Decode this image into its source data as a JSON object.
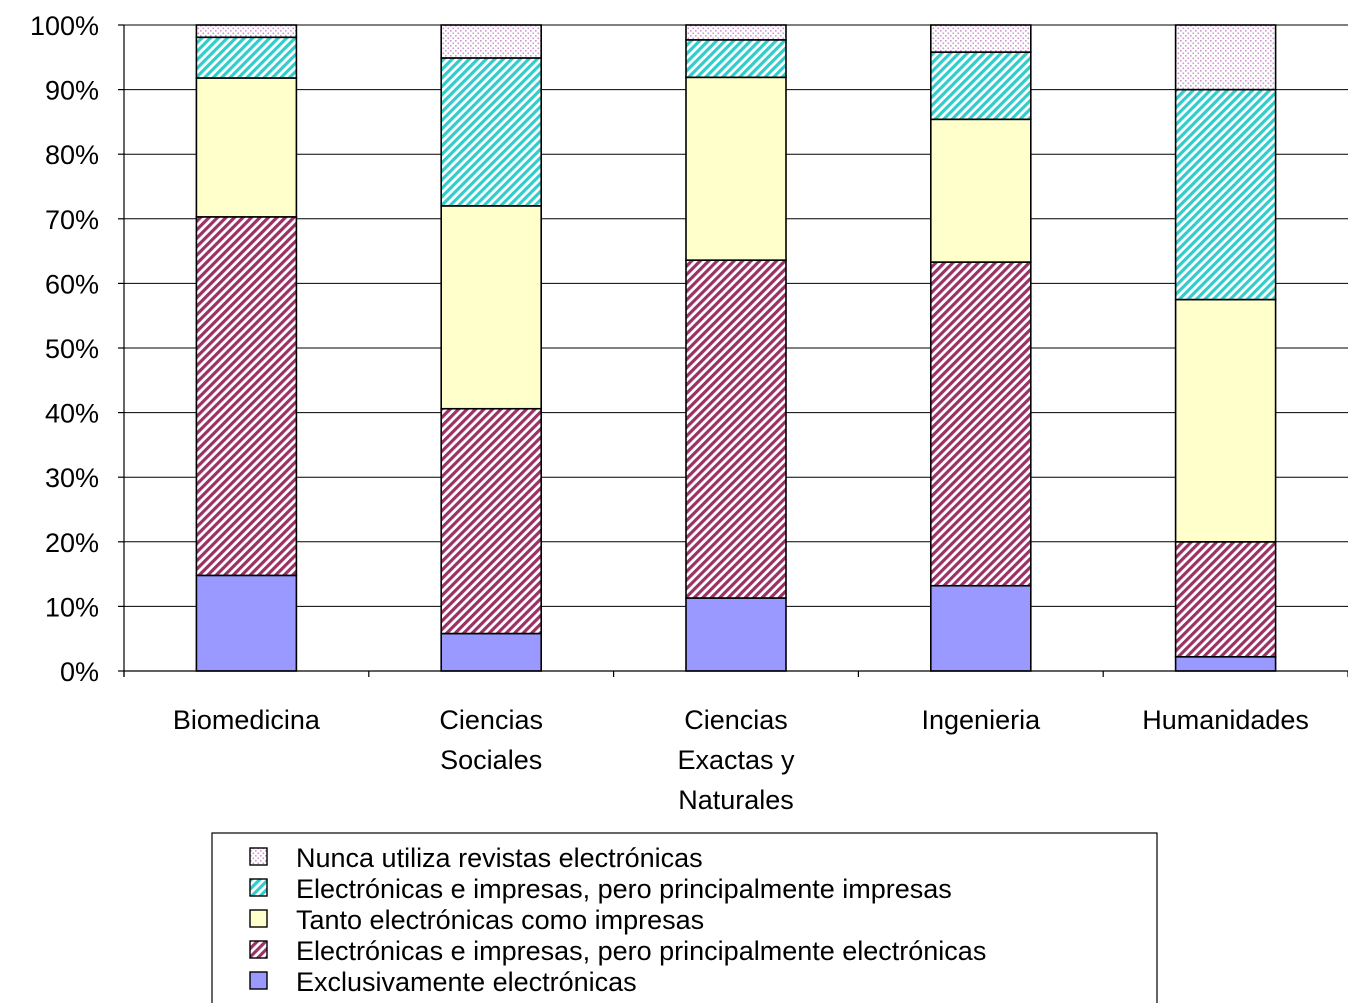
{
  "chart_data": {
    "type": "bar",
    "stacked": true,
    "normalized_percent": true,
    "categories": [
      "Biomedicina",
      "Ciencias Sociales",
      "Ciencias Exactas y Naturales",
      "Ingenieria",
      "Humanidades"
    ],
    "category_lines": [
      [
        "Biomedicina"
      ],
      [
        "Ciencias",
        "Sociales"
      ],
      [
        "Ciencias",
        "Exactas y",
        "Naturales"
      ],
      [
        "Ingenieria"
      ],
      [
        "Humanidades"
      ]
    ],
    "series": [
      {
        "name": "Exclusivamente electrónicas",
        "values": [
          14.8,
          5.8,
          11.3,
          13.2,
          2.2
        ],
        "color": "#9999ff",
        "pattern": "solid"
      },
      {
        "name": "Electrónicas e impresas, pero principalmente electrónicas",
        "values": [
          55.5,
          34.8,
          52.3,
          50.1,
          17.8
        ],
        "color": "#993366",
        "pattern": "diagonal-stripes"
      },
      {
        "name": "Tanto electrónicas como impresas",
        "values": [
          21.5,
          31.4,
          28.3,
          22.1,
          37.5
        ],
        "color": "#ffffcc",
        "pattern": "solid"
      },
      {
        "name": "Electrónicas e impresas, pero principalmente impresas",
        "values": [
          6.3,
          22.9,
          5.8,
          10.4,
          32.5
        ],
        "color": "#33cccc",
        "pattern": "diagonal-stripes"
      },
      {
        "name": "Nunca utiliza revistas electrónicas",
        "values": [
          1.9,
          5.1,
          2.3,
          4.2,
          10.0
        ],
        "color": "#cc99cc",
        "pattern": "dots"
      }
    ],
    "legend_order": [
      4,
      3,
      2,
      1,
      0
    ],
    "ylim": [
      0,
      100
    ],
    "yticks": [
      "0%",
      "10%",
      "20%",
      "30%",
      "40%",
      "50%",
      "60%",
      "70%",
      "80%",
      "90%",
      "100%"
    ],
    "grid": true,
    "legend_position": "bottom",
    "xlabel": "",
    "ylabel": "",
    "title": ""
  }
}
